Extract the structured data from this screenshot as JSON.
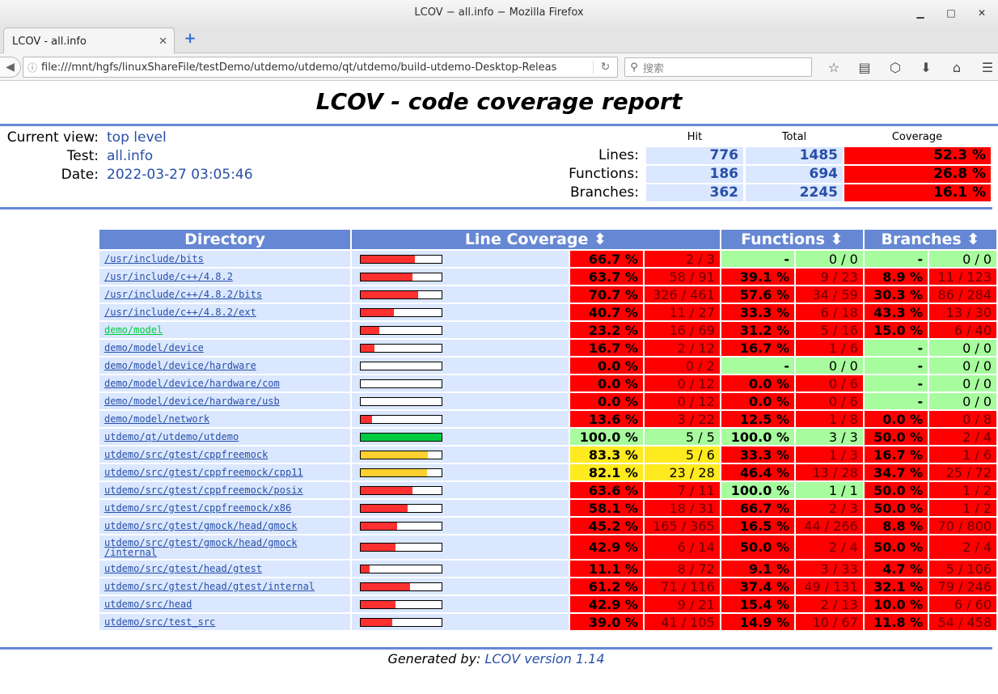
{
  "window": {
    "title": "LCOV − all.info − Mozilla Firefox"
  },
  "tab": {
    "label": "LCOV - all.info"
  },
  "nav": {
    "url": "file:///mnt/hgfs/linuxShareFile/testDemo/utdemo/utdemo/qt/utdemo/build-utdemo-Desktop-Releas",
    "search_placeholder": "搜索"
  },
  "report": {
    "title": "LCOV - code coverage report",
    "current_view_label": "Current view:",
    "current_view": "top level",
    "test_label": "Test:",
    "test": "all.info",
    "date_label": "Date:",
    "date": "2022-03-27 03:05:46",
    "summary_headers": {
      "hit": "Hit",
      "total": "Total",
      "coverage": "Coverage"
    },
    "summary": [
      {
        "label": "Lines:",
        "hit": "776",
        "total": "1485",
        "coverage": "52.3 %"
      },
      {
        "label": "Functions:",
        "hit": "186",
        "total": "694",
        "coverage": "26.8 %"
      },
      {
        "label": "Branches:",
        "hit": "362",
        "total": "2245",
        "coverage": "16.1 %"
      }
    ]
  },
  "table": {
    "headers": {
      "directory": "Directory",
      "line": "Line Coverage ⬍",
      "functions": "Functions ⬍",
      "branches": "Branches ⬍"
    },
    "rows": [
      {
        "dir": "/usr/include/bits",
        "bar": 0.667,
        "lp": "66.7 %",
        "lc": "2 / 3",
        "ll": "lo",
        "fp": "-",
        "fc": "0 / 0",
        "fl": "hi",
        "bp": "-",
        "bc": "0 / 0",
        "bl": "hi"
      },
      {
        "dir": "/usr/include/c++/4.8.2",
        "bar": 0.637,
        "lp": "63.7 %",
        "lc": "58 / 91",
        "ll": "lo",
        "fp": "39.1 %",
        "fc": "9 / 23",
        "fl": "lo",
        "bp": "8.9 %",
        "bc": "11 / 123",
        "bl": "lo"
      },
      {
        "dir": "/usr/include/c++/4.8.2/bits",
        "bar": 0.707,
        "lp": "70.7 %",
        "lc": "326 / 461",
        "ll": "lo",
        "fp": "57.6 %",
        "fc": "34 / 59",
        "fl": "lo",
        "bp": "30.3 %",
        "bc": "86 / 284",
        "bl": "lo"
      },
      {
        "dir": "/usr/include/c++/4.8.2/ext",
        "bar": 0.407,
        "lp": "40.7 %",
        "lc": "11 / 27",
        "ll": "lo",
        "fp": "33.3 %",
        "fc": "6 / 18",
        "fl": "lo",
        "bp": "43.3 %",
        "bc": "13 / 30",
        "bl": "lo"
      },
      {
        "dir": "demo/model",
        "visited": true,
        "bar": 0.232,
        "lp": "23.2 %",
        "lc": "16 / 69",
        "ll": "lo",
        "fp": "31.2 %",
        "fc": "5 / 16",
        "fl": "lo",
        "bp": "15.0 %",
        "bc": "6 / 40",
        "bl": "lo"
      },
      {
        "dir": "demo/model/device",
        "bar": 0.167,
        "lp": "16.7 %",
        "lc": "2 / 12",
        "ll": "lo",
        "fp": "16.7 %",
        "fc": "1 / 6",
        "fl": "lo",
        "bp": "-",
        "bc": "0 / 0",
        "bl": "hi"
      },
      {
        "dir": "demo/model/device/hardware",
        "bar": 0.0,
        "lp": "0.0 %",
        "lc": "0 / 2",
        "ll": "lo",
        "fp": "-",
        "fc": "0 / 0",
        "fl": "hi",
        "bp": "-",
        "bc": "0 / 0",
        "bl": "hi"
      },
      {
        "dir": "demo/model/device/hardware/com",
        "bar": 0.0,
        "lp": "0.0 %",
        "lc": "0 / 12",
        "ll": "lo",
        "fp": "0.0 %",
        "fc": "0 / 6",
        "fl": "lo",
        "bp": "-",
        "bc": "0 / 0",
        "bl": "hi"
      },
      {
        "dir": "demo/model/device/hardware/usb",
        "bar": 0.0,
        "lp": "0.0 %",
        "lc": "0 / 12",
        "ll": "lo",
        "fp": "0.0 %",
        "fc": "0 / 6",
        "fl": "lo",
        "bp": "-",
        "bc": "0 / 0",
        "bl": "hi"
      },
      {
        "dir": "demo/model/network",
        "bar": 0.136,
        "lp": "13.6 %",
        "lc": "3 / 22",
        "ll": "lo",
        "fp": "12.5 %",
        "fc": "1 / 8",
        "fl": "lo",
        "bp": "0.0 %",
        "bc": "0 / 8",
        "bl": "lo"
      },
      {
        "dir": "utdemo/qt/utdemo/utdemo",
        "bar": 1.0,
        "lp": "100.0 %",
        "lc": "5 / 5",
        "ll": "hi",
        "fp": "100.0 %",
        "fc": "3 / 3",
        "fl": "hi",
        "bp": "50.0 %",
        "bc": "2 / 4",
        "bl": "lo"
      },
      {
        "dir": "utdemo/src/gtest/cppfreemock",
        "bar": 0.833,
        "lp": "83.3 %",
        "lc": "5 / 6",
        "ll": "med",
        "fp": "33.3 %",
        "fc": "1 / 3",
        "fl": "lo",
        "bp": "16.7 %",
        "bc": "1 / 6",
        "bl": "lo"
      },
      {
        "dir": "utdemo/src/gtest/cppfreemock/cpp11",
        "bar": 0.821,
        "lp": "82.1 %",
        "lc": "23 / 28",
        "ll": "med",
        "fp": "46.4 %",
        "fc": "13 / 28",
        "fl": "lo",
        "bp": "34.7 %",
        "bc": "25 / 72",
        "bl": "lo"
      },
      {
        "dir": "utdemo/src/gtest/cppfreemock/posix",
        "bar": 0.636,
        "lp": "63.6 %",
        "lc": "7 / 11",
        "ll": "lo",
        "fp": "100.0 %",
        "fc": "1 / 1",
        "fl": "hi",
        "bp": "50.0 %",
        "bc": "1 / 2",
        "bl": "lo"
      },
      {
        "dir": "utdemo/src/gtest/cppfreemock/x86",
        "bar": 0.581,
        "lp": "58.1 %",
        "lc": "18 / 31",
        "ll": "lo",
        "fp": "66.7 %",
        "fc": "2 / 3",
        "fl": "lo",
        "bp": "50.0 %",
        "bc": "1 / 2",
        "bl": "lo"
      },
      {
        "dir": "utdemo/src/gtest/gmock/head/gmock",
        "bar": 0.452,
        "lp": "45.2 %",
        "lc": "165 / 365",
        "ll": "lo",
        "fp": "16.5 %",
        "fc": "44 / 266",
        "fl": "lo",
        "bp": "8.8 %",
        "bc": "70 / 800",
        "bl": "lo"
      },
      {
        "dir": "utdemo/src/gtest/gmock/head/gmock\n/internal",
        "bar": 0.429,
        "lp": "42.9 %",
        "lc": "6 / 14",
        "ll": "lo",
        "fp": "50.0 %",
        "fc": "2 / 4",
        "fl": "lo",
        "bp": "50.0 %",
        "bc": "2 / 4",
        "bl": "lo"
      },
      {
        "dir": "utdemo/src/gtest/head/gtest",
        "bar": 0.111,
        "lp": "11.1 %",
        "lc": "8 / 72",
        "ll": "lo",
        "fp": "9.1 %",
        "fc": "3 / 33",
        "fl": "lo",
        "bp": "4.7 %",
        "bc": "5 / 106",
        "bl": "lo"
      },
      {
        "dir": "utdemo/src/gtest/head/gtest/internal",
        "bar": 0.612,
        "lp": "61.2 %",
        "lc": "71 / 116",
        "ll": "lo",
        "fp": "37.4 %",
        "fc": "49 / 131",
        "fl": "lo",
        "bp": "32.1 %",
        "bc": "79 / 246",
        "bl": "lo"
      },
      {
        "dir": "utdemo/src/head",
        "bar": 0.429,
        "lp": "42.9 %",
        "lc": "9 / 21",
        "ll": "lo",
        "fp": "15.4 %",
        "fc": "2 / 13",
        "fl": "lo",
        "bp": "10.0 %",
        "bc": "6 / 60",
        "bl": "lo"
      },
      {
        "dir": "utdemo/src/test_src",
        "bar": 0.39,
        "lp": "39.0 %",
        "lc": "41 / 105",
        "ll": "lo",
        "fp": "14.9 %",
        "fc": "10 / 67",
        "fl": "lo",
        "bp": "11.8 %",
        "bc": "54 / 458",
        "bl": "lo"
      }
    ]
  },
  "footer": {
    "prefix": "Generated by: ",
    "link": "LCOV version 1.14"
  },
  "colors": {
    "header_blue": "#6688d4",
    "lo": "#ff0000",
    "med": "#ffea20",
    "hi": "#a7fc9d",
    "bar_lo": "#ff3030",
    "bar_med": "#ffd030",
    "bar_hi": "#00cb40"
  }
}
